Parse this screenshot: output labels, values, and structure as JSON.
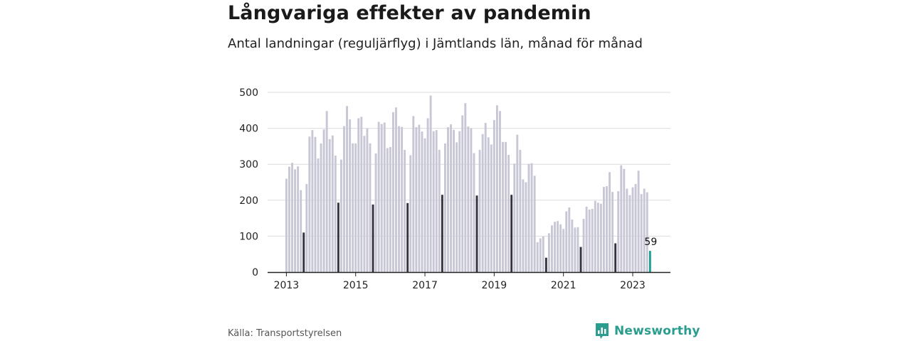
{
  "title": "Långvariga effekter av pandemin",
  "subtitle": "Antal landningar (reguljärflyg) i Jämtlands län, månad för månad",
  "source": "Källa: Transportstyrelsen",
  "brand": "Newsworthy",
  "brand_icon": "bar-chart-bubble-icon",
  "colors": {
    "bar": "#c8c7d6",
    "highlight": "#35333e",
    "latest": "#1a9e8f",
    "grid": "#dcdcdc",
    "axis": "#222222",
    "brand": "#2a9d8f"
  },
  "chart_data": {
    "type": "bar",
    "title": "Långvariga effekter av pandemin",
    "subtitle": "Antal landningar (reguljärflyg) i Jämtlands län, månad för månad",
    "x_start": "2013-01",
    "x_end": "2023-07",
    "x_ticks": [
      "2013",
      "2015",
      "2017",
      "2019",
      "2021",
      "2023"
    ],
    "y_ticks": [
      0,
      100,
      200,
      300,
      400,
      500
    ],
    "ylim": [
      0,
      500
    ],
    "grid": true,
    "highlight_month": "July",
    "values": [
      260,
      293,
      304,
      286,
      294,
      228,
      110,
      245,
      377,
      395,
      376,
      316,
      358,
      397,
      448,
      370,
      380,
      324,
      193,
      313,
      406,
      462,
      425,
      358,
      358,
      428,
      432,
      379,
      399,
      358,
      188,
      330,
      418,
      412,
      416,
      345,
      348,
      445,
      458,
      406,
      404,
      340,
      192,
      325,
      434,
      403,
      410,
      391,
      372,
      428,
      491,
      392,
      395,
      340,
      215,
      358,
      403,
      411,
      396,
      361,
      392,
      436,
      470,
      405,
      400,
      331,
      213,
      340,
      384,
      415,
      375,
      355,
      423,
      464,
      448,
      362,
      362,
      326,
      215,
      302,
      382,
      340,
      258,
      250,
      301,
      303,
      268,
      83,
      94,
      99,
      40,
      108,
      130,
      140,
      142,
      133,
      120,
      169,
      180,
      146,
      124,
      125,
      70,
      148,
      182,
      174,
      176,
      198,
      193,
      190,
      237,
      239,
      278,
      223,
      80,
      225,
      297,
      287,
      232,
      214,
      236,
      245,
      282,
      217,
      232,
      222,
      59
    ],
    "last_label": "59"
  }
}
